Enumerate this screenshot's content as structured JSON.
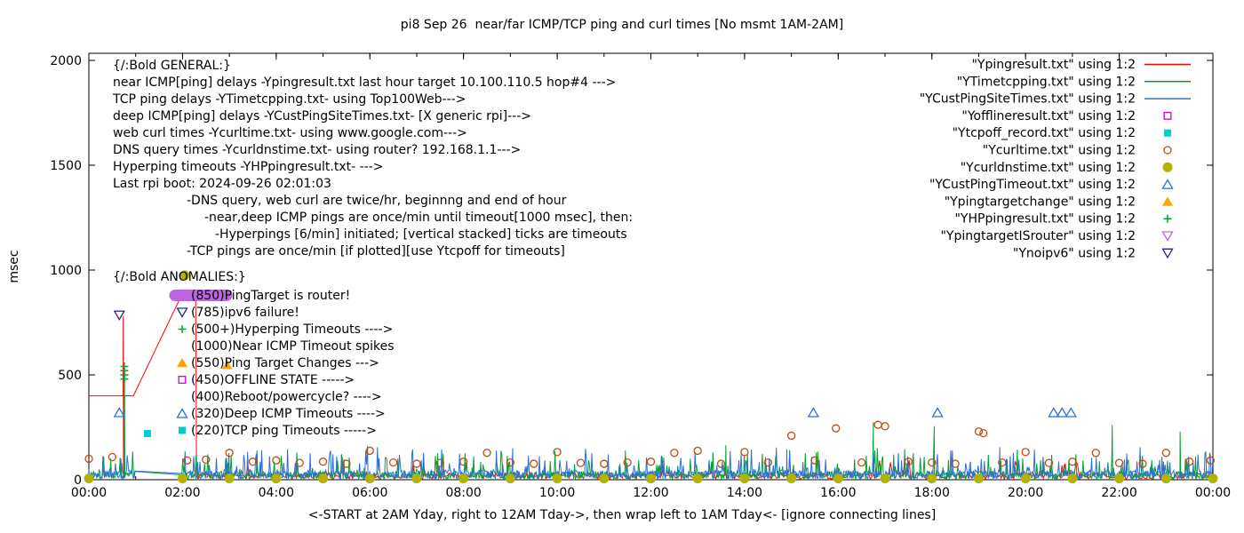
{
  "chart_data": {
    "type": "line+scatter",
    "title": "pi8 Sep 26  near/far ICMP/TCP ping and curl times [No msmt 1AM-2AM]",
    "xlabel": "<-START at 2AM Yday, right to 12AM Tday->, then wrap left to 1AM Tday<- [ignore connecting lines]",
    "ylabel": "msec",
    "ylim": [
      0,
      2000
    ],
    "yticks": [
      0,
      500,
      1000,
      1500,
      2000
    ],
    "xtick_hours": [
      0,
      2,
      4,
      6,
      8,
      10,
      12,
      14,
      16,
      18,
      20,
      22,
      24
    ],
    "xtick_labels": [
      "00:00",
      "02:00",
      "04:00",
      "06:00",
      "08:00",
      "10:00",
      "12:00",
      "14:00",
      "16:00",
      "18:00",
      "20:00",
      "22:00",
      "00:00"
    ],
    "grid": false,
    "legend_position": "top-right",
    "series": [
      {
        "name": "Ypingresult.txt",
        "legend": "\"Ypingresult.txt\" using 1:2",
        "style": "line",
        "color": "#ff0000",
        "points": [
          [
            0,
            400
          ],
          [
            0.73,
            400
          ],
          [
            0.735,
            780
          ],
          [
            0.74,
            5
          ],
          [
            0.745,
            400
          ],
          [
            0.95,
            400
          ],
          [
            2.0,
            890
          ],
          [
            2.28,
            890
          ],
          [
            2.3,
            25
          ]
        ],
        "noise": {
          "from": 2.33,
          "to": 24,
          "step": 0.0333,
          "base": 3,
          "jitter": 30,
          "spike_prob": 0.05,
          "spike_amp": 70,
          "seed": 7
        }
      },
      {
        "name": "YTimetcpping.txt",
        "legend": "\"YTimetcpping.txt\" using 1:2",
        "style": "line",
        "color": "#00a332",
        "noise": {
          "from": 0,
          "to": 24,
          "step": 0.0167,
          "base": 3,
          "jitter": 38,
          "spike_prob": 0.13,
          "spike_amp": 120,
          "seed": 13,
          "gap": [
            1.0,
            1.97
          ]
        },
        "spikes": [
          [
            0.76,
            530
          ],
          [
            13.6,
            165
          ],
          [
            16.75,
            275
          ],
          [
            18.05,
            255
          ],
          [
            21.85,
            262
          ],
          [
            23.3,
            230
          ]
        ]
      },
      {
        "name": "YCustPingSiteTimes.txt",
        "legend": "\"YCustPingSiteTimes.txt\" using 1:2",
        "style": "line",
        "color": "#2f6fd3",
        "noise": {
          "from": 0,
          "to": 24,
          "step": 0.0167,
          "base": 3,
          "jitter": 42,
          "spike_prob": 0.16,
          "spike_amp": 115,
          "seed": 29,
          "gap": [
            1.0,
            1.97
          ]
        },
        "spikes": [
          [
            5.95,
            160
          ],
          [
            9.05,
            150
          ],
          [
            14.9,
            145
          ],
          [
            19.45,
            155
          ]
        ]
      },
      {
        "name": "Yofflineresult.txt",
        "legend": "\"Yofflineresult.txt\" using 1:2",
        "style": "points",
        "marker": "square-open",
        "color": "#cf00cf",
        "points": []
      },
      {
        "name": "Ytcpoff_record.txt",
        "legend": "\"Ytcpoff_record.txt\" using 1:2",
        "style": "points",
        "marker": "square",
        "color": "#00cdcd",
        "points": [
          [
            1.25,
            220
          ]
        ]
      },
      {
        "name": "Ycurltime.txt",
        "legend": "\"Ycurltime.txt\" using 1:2",
        "style": "points",
        "marker": "circle-open",
        "color": "#bf4d12",
        "points": [
          [
            0.0,
            100
          ],
          [
            0.5,
            108
          ],
          [
            2.1,
            92
          ],
          [
            2.5,
            96
          ],
          [
            3.0,
            128
          ],
          [
            3.5,
            86
          ],
          [
            4.0,
            92
          ],
          [
            4.5,
            80
          ],
          [
            5.0,
            86
          ],
          [
            5.5,
            76
          ],
          [
            6.0,
            138
          ],
          [
            6.5,
            82
          ],
          [
            7.0,
            76
          ],
          [
            7.5,
            80
          ],
          [
            8.0,
            86
          ],
          [
            8.5,
            128
          ],
          [
            9.0,
            82
          ],
          [
            9.5,
            76
          ],
          [
            10.0,
            132
          ],
          [
            10.5,
            80
          ],
          [
            11.0,
            76
          ],
          [
            11.5,
            82
          ],
          [
            12.0,
            86
          ],
          [
            12.5,
            128
          ],
          [
            13.0,
            138
          ],
          [
            13.5,
            76
          ],
          [
            14.0,
            132
          ],
          [
            14.5,
            82
          ],
          [
            15.0,
            210
          ],
          [
            15.5,
            92
          ],
          [
            15.95,
            245
          ],
          [
            16.5,
            82
          ],
          [
            16.85,
            262
          ],
          [
            17.0,
            255
          ],
          [
            17.5,
            86
          ],
          [
            18.0,
            82
          ],
          [
            18.5,
            76
          ],
          [
            19.0,
            230
          ],
          [
            19.1,
            222
          ],
          [
            19.5,
            82
          ],
          [
            20.0,
            132
          ],
          [
            20.5,
            80
          ],
          [
            21.0,
            86
          ],
          [
            21.5,
            128
          ],
          [
            22.0,
            80
          ],
          [
            22.5,
            76
          ],
          [
            23.0,
            128
          ],
          [
            23.5,
            86
          ],
          [
            23.95,
            92
          ]
        ]
      },
      {
        "name": "Ycurldnstime.txt",
        "legend": "\"Ycurldnstime.txt\" using 1:2",
        "style": "points",
        "marker": "circle",
        "color": "#b2b200",
        "points": [
          [
            0,
            6
          ],
          [
            2,
            6
          ],
          [
            2.05,
            975
          ],
          [
            3,
            6
          ],
          [
            4,
            6
          ],
          [
            5,
            6
          ],
          [
            6,
            6
          ],
          [
            7,
            6
          ],
          [
            8,
            6
          ],
          [
            9,
            6
          ],
          [
            10,
            6
          ],
          [
            11,
            6
          ],
          [
            12,
            6
          ],
          [
            13,
            6
          ],
          [
            14,
            6
          ],
          [
            15,
            6
          ],
          [
            16,
            6
          ],
          [
            17,
            6
          ],
          [
            18,
            6
          ],
          [
            19,
            6
          ],
          [
            20,
            6
          ],
          [
            21,
            6
          ],
          [
            22,
            6
          ],
          [
            23,
            6
          ],
          [
            24,
            6
          ]
        ]
      },
      {
        "name": "YCustPingTimeout.txt",
        "legend": "\"YCustPingTimeout.txt\" using 1:2",
        "style": "points",
        "marker": "triangle-open",
        "color": "#2f6fd3",
        "points": [
          [
            0.65,
            320
          ],
          [
            15.47,
            320
          ],
          [
            18.12,
            320
          ],
          [
            20.6,
            320
          ],
          [
            20.78,
            320
          ],
          [
            20.97,
            320
          ]
        ]
      },
      {
        "name": "Ypingtargetchange",
        "legend": "\"Ypingtargetchange\" using 1:2",
        "style": "points",
        "marker": "triangle",
        "color": "#ffa500",
        "points": [
          [
            2.95,
            548
          ]
        ]
      },
      {
        "name": "YHPpingresult.txt",
        "legend": "\"YHPpingresult.txt\" using 1:2",
        "style": "points",
        "marker": "plus",
        "color": "#00a332",
        "points": [
          [
            0.757,
            480
          ],
          [
            0.757,
            500
          ],
          [
            0.757,
            520
          ],
          [
            0.757,
            540
          ]
        ]
      },
      {
        "name": "YpingtargetISrouter",
        "legend": "\"YpingtargetISrouter\" using 1:2",
        "style": "points",
        "marker": "triangle-down-open",
        "row_marker": "hbar",
        "color": "#bb66e0",
        "points": []
      },
      {
        "name": "Ynoipv6",
        "legend": "\"Ynoipv6\" using 1:2",
        "style": "points",
        "marker": "triangle-down-open",
        "color": "#29297e",
        "points": [
          [
            0.65,
            785
          ]
        ]
      }
    ],
    "annotations": [
      {
        "x": 127,
        "y": 78,
        "text": "{/:Bold GENERAL:}"
      },
      {
        "x": 127,
        "y": 97,
        "text": "near ICMP[ping] delays -Ypingresult.txt last hour target 10.100.110.5 hop#4 --->"
      },
      {
        "x": 127,
        "y": 116,
        "text": "TCP ping delays -YTimetcpping.txt- using Top100Web--->"
      },
      {
        "x": 127,
        "y": 135,
        "text": "deep ICMP[ping] delays -YCustPingSiteTimes.txt- [X generic rpi]--->"
      },
      {
        "x": 127,
        "y": 154,
        "text": "web curl times -Ycurltime.txt- using www.google.com--->"
      },
      {
        "x": 127,
        "y": 173,
        "text": "DNS query times -Ycurldnstime.txt- using router? 192.168.1.1--->"
      },
      {
        "x": 127,
        "y": 192,
        "text": "Hyperping timeouts -YHPpingresult.txt- --->"
      },
      {
        "x": 127,
        "y": 211,
        "text": "Last rpi boot: 2024-09-26 02:01:03"
      },
      {
        "x": 210,
        "y": 230,
        "text": "-DNS query, web curl are twice/hr, beginnng and end of hour"
      },
      {
        "x": 230,
        "y": 249,
        "text": "-near,deep ICMP pings are once/min until timeout[1000 msec], then:"
      },
      {
        "x": 242,
        "y": 268,
        "text": "-Hyperpings [6/min] initiated; [vertical stacked] ticks are timeouts"
      },
      {
        "x": 210,
        "y": 287,
        "text": "-TCP pings are once/min [if plotted][use Ytcpoff for timeouts]"
      },
      {
        "x": 127,
        "y": 316,
        "text": "{/:Bold ANOMALIES:}"
      },
      {
        "x": 215,
        "y": 337,
        "text": "(850)PingTarget is router!",
        "marker_series": "YpingtargetISrouter"
      },
      {
        "x": 215,
        "y": 356,
        "text": "(785)ipv6 failure!",
        "marker_series": "Ynoipv6"
      },
      {
        "x": 215,
        "y": 375,
        "text": "(500+)Hyperping Timeouts ---->",
        "marker_series": "YHPpingresult.txt"
      },
      {
        "x": 215,
        "y": 394,
        "text": "(1000)Near ICMP Timeout spikes"
      },
      {
        "x": 215,
        "y": 413,
        "text": "(550)Ping Target Changes --->",
        "marker_series": "Ypingtargetchange"
      },
      {
        "x": 215,
        "y": 432,
        "text": "(450)OFFLINE STATE ----->",
        "marker_series": "Yofflineresult.txt"
      },
      {
        "x": 215,
        "y": 451,
        "text": "(400)Reboot/powercycle? ---->"
      },
      {
        "x": 215,
        "y": 470,
        "text": "(320)Deep ICMP Timeouts ---->",
        "marker_series": "YCustPingTimeout.txt"
      },
      {
        "x": 215,
        "y": 489,
        "text": "(220)TCP ping Timeouts ----->",
        "marker_series": "Ytcpoff_record.txt"
      }
    ]
  }
}
